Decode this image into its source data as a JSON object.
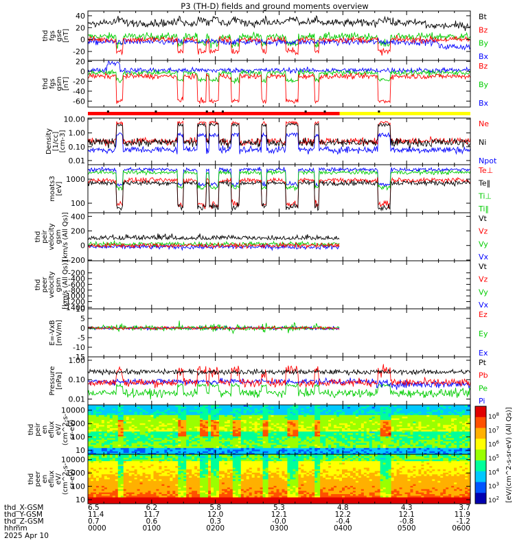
{
  "title": "P3 (TH-D) fields and ground moments overview",
  "chart_data": {
    "type": "line",
    "x_ticks": [
      "0000",
      "0100",
      "0200",
      "0300",
      "0400",
      "0500",
      "0600"
    ],
    "x_range": [
      0,
      6
    ],
    "x_units": "hours UT",
    "ephemeris": {
      "labels": [
        "thd_X-GSM",
        "thd_Y-GSM",
        "thd_Z-GSM",
        "hhmm",
        "2025 Apr 10"
      ],
      "rows": [
        [
          "6.5",
          "6.2",
          "5.8",
          "5.3",
          "4.8",
          "4.3",
          "3.7"
        ],
        [
          "11.4",
          "11.7",
          "12.0",
          "12.1",
          "12.2",
          "12.1",
          "11.9"
        ],
        [
          "0.7",
          "0.6",
          "0.3",
          "-0.0",
          "-0.4",
          "-0.8",
          "-1.2"
        ],
        [
          "0000",
          "0100",
          "0200",
          "0300",
          "0400",
          "0500",
          "0600"
        ]
      ]
    },
    "panels": [
      {
        "id": "fgs-gse",
        "ylabel": [
          "thd",
          "fgs",
          "gse",
          "[nT]"
        ],
        "scale": "linear",
        "ylim": [
          -35,
          48
        ],
        "yticks": [
          [
            "40",
            40
          ],
          [
            "20",
            20
          ],
          [
            "0",
            0
          ],
          [
            "-20",
            -20
          ]
        ],
        "legend": [
          [
            "Bt",
            "#000000"
          ],
          [
            "Bz",
            "#ff0000"
          ],
          [
            "By",
            "#00cc00"
          ],
          [
            "Bx",
            "#0000ff"
          ]
        ]
      },
      {
        "id": "fgs-gsm",
        "ylabel": [
          "thd",
          "fgs",
          "gsm",
          "[nT]"
        ],
        "scale": "linear",
        "ylim": [
          -72,
          22
        ],
        "yticks": [
          [
            "20",
            20
          ],
          [
            "0",
            0
          ],
          [
            "-20",
            -20
          ],
          [
            "-40",
            -40
          ],
          [
            "-60",
            -60
          ]
        ],
        "legend": [
          [
            "Bz",
            "#ff0000"
          ],
          [
            "By",
            "#00cc00"
          ],
          [
            "Bx",
            "#0000ff"
          ]
        ]
      },
      {
        "id": "density",
        "ylabel": [
          "Density",
          "[1/cc]",
          "[cm-3]"
        ],
        "scale": "log",
        "ylim": [
          0.005,
          12
        ],
        "yticks": [
          [
            "10.00",
            10
          ],
          [
            "1.00",
            1
          ],
          [
            "0.10",
            0.1
          ],
          [
            "0.01",
            0.01
          ]
        ],
        "legend": [
          [
            "Ne",
            "#ff0000"
          ],
          [
            "Ni",
            "#000000"
          ],
          [
            "Npot",
            "#0000ff"
          ]
        ]
      },
      {
        "id": "temp",
        "ylabel": [
          "moats3",
          "[eV]"
        ],
        "scale": "log",
        "ylim": [
          40,
          4000
        ],
        "yticks": [
          [
            "1000",
            1000
          ],
          [
            "100",
            100
          ]
        ],
        "legend": [
          [
            "Te⊥",
            "#ff0000"
          ],
          [
            "Te‖",
            "#000000"
          ],
          [
            "Ti⊥",
            "#00cc00"
          ],
          [
            "Ti‖",
            "#00cc00"
          ]
        ]
      },
      {
        "id": "peir-vel",
        "ylabel": [
          "thd",
          "peir",
          "velocity",
          "gsm",
          "[km/s (All Qs)]"
        ],
        "scale": "linear",
        "ylim": [
          -210,
          450
        ],
        "yticks": [
          [
            "400",
            400
          ],
          [
            "200",
            200
          ],
          [
            "0",
            0
          ],
          [
            "-200",
            -200
          ]
        ],
        "legend": [
          [
            "Vt",
            "#000000"
          ],
          [
            "Vz",
            "#ff0000"
          ],
          [
            "Vy",
            "#00cc00"
          ],
          [
            "Vx",
            "#0000ff"
          ]
        ]
      },
      {
        "id": "peer-vel",
        "ylabel": [
          "thd",
          "peer",
          "velocity",
          "gsm",
          "[km/s (All Qs)]"
        ],
        "scale": "linear",
        "ylim": [
          -1450,
          220
        ],
        "yticks": [
          [
            "-200",
            -200
          ],
          [
            "-400",
            -400
          ],
          [
            "-600",
            -600
          ],
          [
            "-800",
            -800
          ],
          [
            "-1000",
            -1000
          ],
          [
            "-1200",
            -1200
          ],
          [
            "-1400",
            -1400
          ]
        ],
        "legend": [
          [
            "Vt",
            "#000000"
          ],
          [
            "Vz",
            "#ff0000"
          ],
          [
            "Vy",
            "#00cc00"
          ],
          [
            "Vx",
            "#0000ff"
          ]
        ]
      },
      {
        "id": "efield",
        "ylabel": [
          "E=-VxB",
          "[mV/m]"
        ],
        "scale": "linear",
        "ylim": [
          -15,
          10
        ],
        "yticks": [
          [
            "10",
            10
          ],
          [
            "5",
            5
          ],
          [
            "0",
            0
          ],
          [
            "-5",
            -5
          ],
          [
            "-10",
            -10
          ],
          [
            "-15",
            -15
          ]
        ],
        "legend": [
          [
            "Ez",
            "#ff0000"
          ],
          [
            "Ey",
            "#00cc00"
          ],
          [
            "Ex",
            "#0000ff"
          ]
        ]
      },
      {
        "id": "pressure",
        "ylabel": [
          "Pressure",
          "[nPa]"
        ],
        "scale": "log",
        "ylim": [
          0.005,
          1.5
        ],
        "yticks": [
          [
            "1.00",
            1
          ],
          [
            "0.10",
            0.1
          ],
          [
            "0.01",
            0.01
          ]
        ],
        "legend": [
          [
            "Pt",
            "#000000"
          ],
          [
            "Pb",
            "#ff0000"
          ],
          [
            "Pe",
            "#00cc00"
          ],
          [
            "Pi",
            "#0000ff"
          ]
        ]
      },
      {
        "id": "peir-spec",
        "ylabel": [
          "thd",
          "peir",
          "en",
          "eflux",
          "eV/",
          "(cm^2-s-",
          "sr-eV)"
        ],
        "scale": "log",
        "ylim": [
          5,
          25000
        ],
        "yticks": [
          [
            "10000",
            10000
          ],
          [
            "1000",
            1000
          ],
          [
            "100",
            100
          ],
          [
            "10",
            10
          ]
        ]
      },
      {
        "id": "peer-spec",
        "ylabel": [
          "thd",
          "peer",
          "en",
          "eflux",
          "eV/",
          "(cm^2-s-",
          "sr-eV)"
        ],
        "scale": "log",
        "ylim": [
          5,
          25000
        ],
        "yticks": [
          [
            "10000",
            10000
          ],
          [
            "1000",
            1000
          ],
          [
            "100",
            100
          ],
          [
            "10",
            10
          ]
        ]
      }
    ],
    "colorbar": {
      "label": "[eV/(cm^2-s-sr-eV) (All Qs)]",
      "ticks": [
        "10^8",
        "10^7",
        "10^6",
        "10^5",
        "10^4",
        "10^3",
        "10^2"
      ]
    },
    "mode_bar": {
      "segments": [
        [
          "red",
          0,
          3.95
        ],
        [
          "yellow",
          3.95,
          6
        ]
      ]
    }
  }
}
